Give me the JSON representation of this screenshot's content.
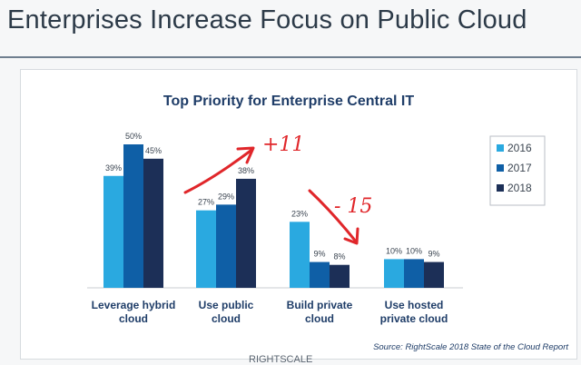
{
  "slide": {
    "title": "Enterprises Increase Focus on Public Cloud"
  },
  "annotations": {
    "up": "+11",
    "down": "- 15"
  },
  "footer": {
    "partial_text": "RIGHTSCALE"
  },
  "chart_data": {
    "type": "bar",
    "title": "Top Priority for Enterprise Central IT",
    "categories": [
      "Leverage hybrid cloud",
      "Use public cloud",
      "Build private cloud",
      "Use hosted private cloud"
    ],
    "category_lines": [
      [
        "Leverage hybrid",
        "cloud"
      ],
      [
        "Use public",
        "cloud"
      ],
      [
        "Build private",
        "cloud"
      ],
      [
        "Use hosted",
        "private cloud"
      ]
    ],
    "series": [
      {
        "name": "2016",
        "values": [
          39,
          27,
          23,
          10
        ],
        "labels": [
          "39%",
          "27%",
          "23%",
          "10%"
        ],
        "color": "#2aa9e0"
      },
      {
        "name": "2017",
        "values": [
          50,
          29,
          9,
          10
        ],
        "labels": [
          "50%",
          "29%",
          "9%",
          "10%"
        ],
        "color": "#0f5fa6"
      },
      {
        "name": "2018",
        "values": [
          45,
          38,
          8,
          9
        ],
        "labels": [
          "45%",
          "38%",
          "8%",
          "9%"
        ],
        "color": "#1c2f57"
      }
    ],
    "ylim": [
      0,
      50
    ],
    "grid": false,
    "legend_position": "right",
    "source": "Source: RightScale 2018 State of the Cloud Report"
  }
}
